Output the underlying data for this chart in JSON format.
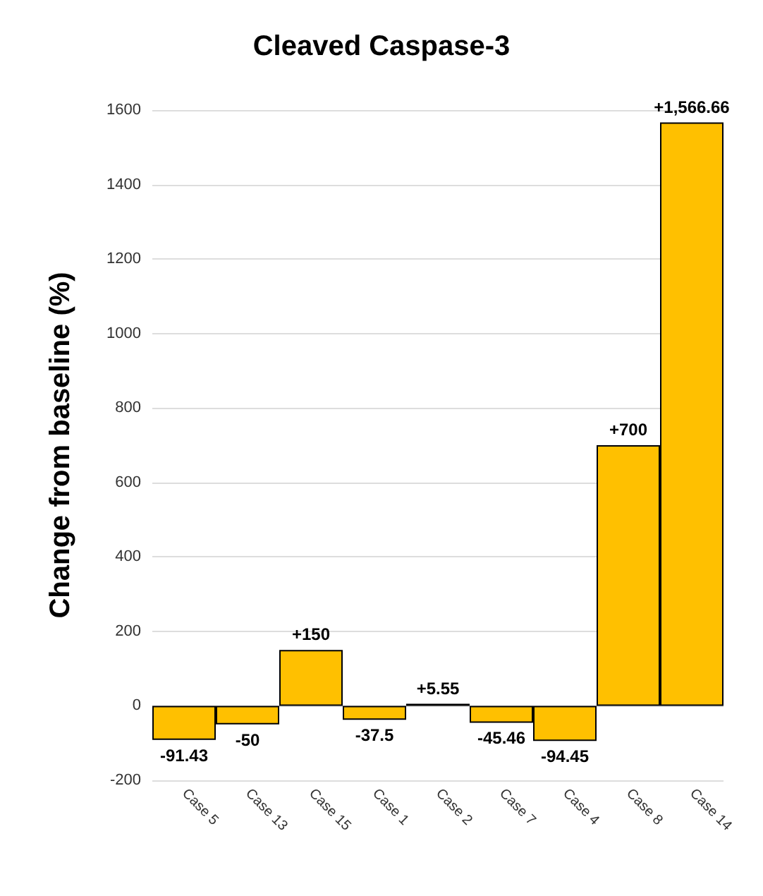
{
  "chart_data": {
    "type": "bar",
    "title": "Cleaved Caspase-3",
    "ylabel": "Change from baseline (%)",
    "categories": [
      "Case 5",
      "Case 13",
      "Case 15",
      "Case 1",
      "Case 2",
      "Case 7",
      "Case 4",
      "Case 8",
      "Case 14"
    ],
    "values": [
      -91.43,
      -50,
      150,
      -37.5,
      5.55,
      -45.46,
      -94.45,
      700,
      1566.66
    ],
    "value_labels": [
      "-91.43",
      "-50",
      "+150",
      "-37.5",
      "+5.55",
      "-45.46",
      "-94.45",
      "+700",
      "+1,566.66"
    ],
    "color": "#ffc000",
    "ylim": [
      -200,
      1600
    ],
    "yticks": [
      -200,
      0,
      200,
      400,
      600,
      800,
      1000,
      1200,
      1400,
      1600
    ],
    "grid": "y"
  }
}
